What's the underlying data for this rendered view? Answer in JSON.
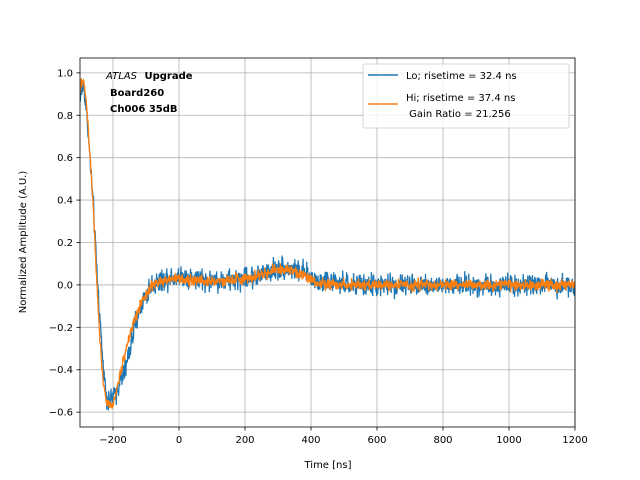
{
  "chart_data": {
    "type": "line",
    "title": "",
    "xlabel": "Time [ns]",
    "ylabel": "Normalized Amplitude (A.U.)",
    "xlim": [
      -300,
      1200
    ],
    "ylim": [
      -0.67,
      1.07
    ],
    "xticks": [
      -200,
      0,
      200,
      400,
      600,
      800,
      1000,
      1200
    ],
    "yticks": [
      -0.6,
      -0.4,
      -0.2,
      0.0,
      0.2,
      0.4,
      0.6,
      0.8,
      1.0
    ],
    "xtick_labels": [
      "−200",
      "0",
      "200",
      "400",
      "600",
      "800",
      "1000",
      "1200"
    ],
    "ytick_labels": [
      "−0.6",
      "−0.4",
      "−0.2",
      "0.0",
      "0.2",
      "0.4",
      "0.6",
      "0.8",
      "1.0"
    ],
    "grid": true,
    "legend_position": "top-right",
    "annotation": {
      "experiment": "ATLAS",
      "tag": "Upgrade",
      "line2": "Board260",
      "line3": "Ch006 35dB"
    },
    "series": [
      {
        "name": "Lo; risetime = 32.4 ns",
        "color": "#1f77b4",
        "noise": 0.045,
        "x": [
          -300,
          -290,
          -280,
          -270,
          -260,
          -250,
          -240,
          -230,
          -220,
          -210,
          -200,
          -190,
          -180,
          -170,
          -160,
          -150,
          -140,
          -130,
          -120,
          -110,
          -100,
          -90,
          -80,
          -60,
          -40,
          -20,
          0,
          50,
          100,
          150,
          200,
          250,
          300,
          340,
          380,
          420,
          500,
          600,
          700,
          800,
          900,
          1000,
          1100,
          1200
        ],
        "values": [
          0.88,
          0.95,
          0.82,
          0.6,
          0.38,
          0.1,
          -0.15,
          -0.38,
          -0.52,
          -0.55,
          -0.53,
          -0.5,
          -0.46,
          -0.43,
          -0.38,
          -0.31,
          -0.24,
          -0.17,
          -0.12,
          -0.08,
          -0.05,
          -0.02,
          0.0,
          0.02,
          0.03,
          0.04,
          0.04,
          0.03,
          0.02,
          0.02,
          0.03,
          0.05,
          0.08,
          0.08,
          0.05,
          0.02,
          0.0,
          0.0,
          0.0,
          0.0,
          0.0,
          0.0,
          0.0,
          0.0
        ]
      },
      {
        "name": "Hi; risetime = 37.4 ns",
        "color": "#ff7f0e",
        "noise": 0.022,
        "x": [
          -300,
          -290,
          -280,
          -270,
          -260,
          -250,
          -240,
          -230,
          -220,
          -210,
          -200,
          -190,
          -180,
          -170,
          -160,
          -150,
          -140,
          -130,
          -120,
          -110,
          -100,
          -90,
          -80,
          -60,
          -40,
          -20,
          0,
          50,
          100,
          150,
          200,
          250,
          300,
          340,
          380,
          420,
          500,
          600,
          700,
          800,
          900,
          1000,
          1100,
          1200
        ],
        "values": [
          0.92,
          0.98,
          0.85,
          0.62,
          0.38,
          0.05,
          -0.25,
          -0.45,
          -0.55,
          -0.57,
          -0.56,
          -0.5,
          -0.43,
          -0.36,
          -0.3,
          -0.24,
          -0.19,
          -0.15,
          -0.11,
          -0.08,
          -0.05,
          -0.02,
          0.0,
          0.01,
          0.02,
          0.03,
          0.03,
          0.02,
          0.02,
          0.02,
          0.03,
          0.05,
          0.07,
          0.07,
          0.04,
          0.01,
          0.0,
          0.0,
          0.0,
          0.0,
          0.0,
          0.0,
          0.0,
          0.0
        ]
      }
    ],
    "legend_extra": " Gain Ratio = 21.256"
  }
}
